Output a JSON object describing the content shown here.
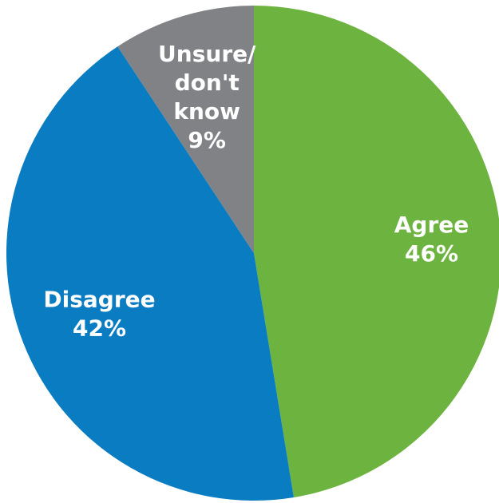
{
  "chart_data": {
    "type": "pie",
    "title": "",
    "start_angle_deg": 0,
    "direction": "clockwise",
    "slices": [
      {
        "name": "Agree",
        "lines": [
          "Agree"
        ],
        "label": "46%",
        "value": 46,
        "color": "#6db33f"
      },
      {
        "name": "Disagree",
        "lines": [
          "Disagree"
        ],
        "label": "42%",
        "value": 42,
        "color": "#0a7cc1"
      },
      {
        "name": "Unsure/ don't know",
        "lines": [
          "Unsure/",
          "don't",
          "know"
        ],
        "label": "9%",
        "value": 9,
        "color": "#808285"
      }
    ]
  }
}
